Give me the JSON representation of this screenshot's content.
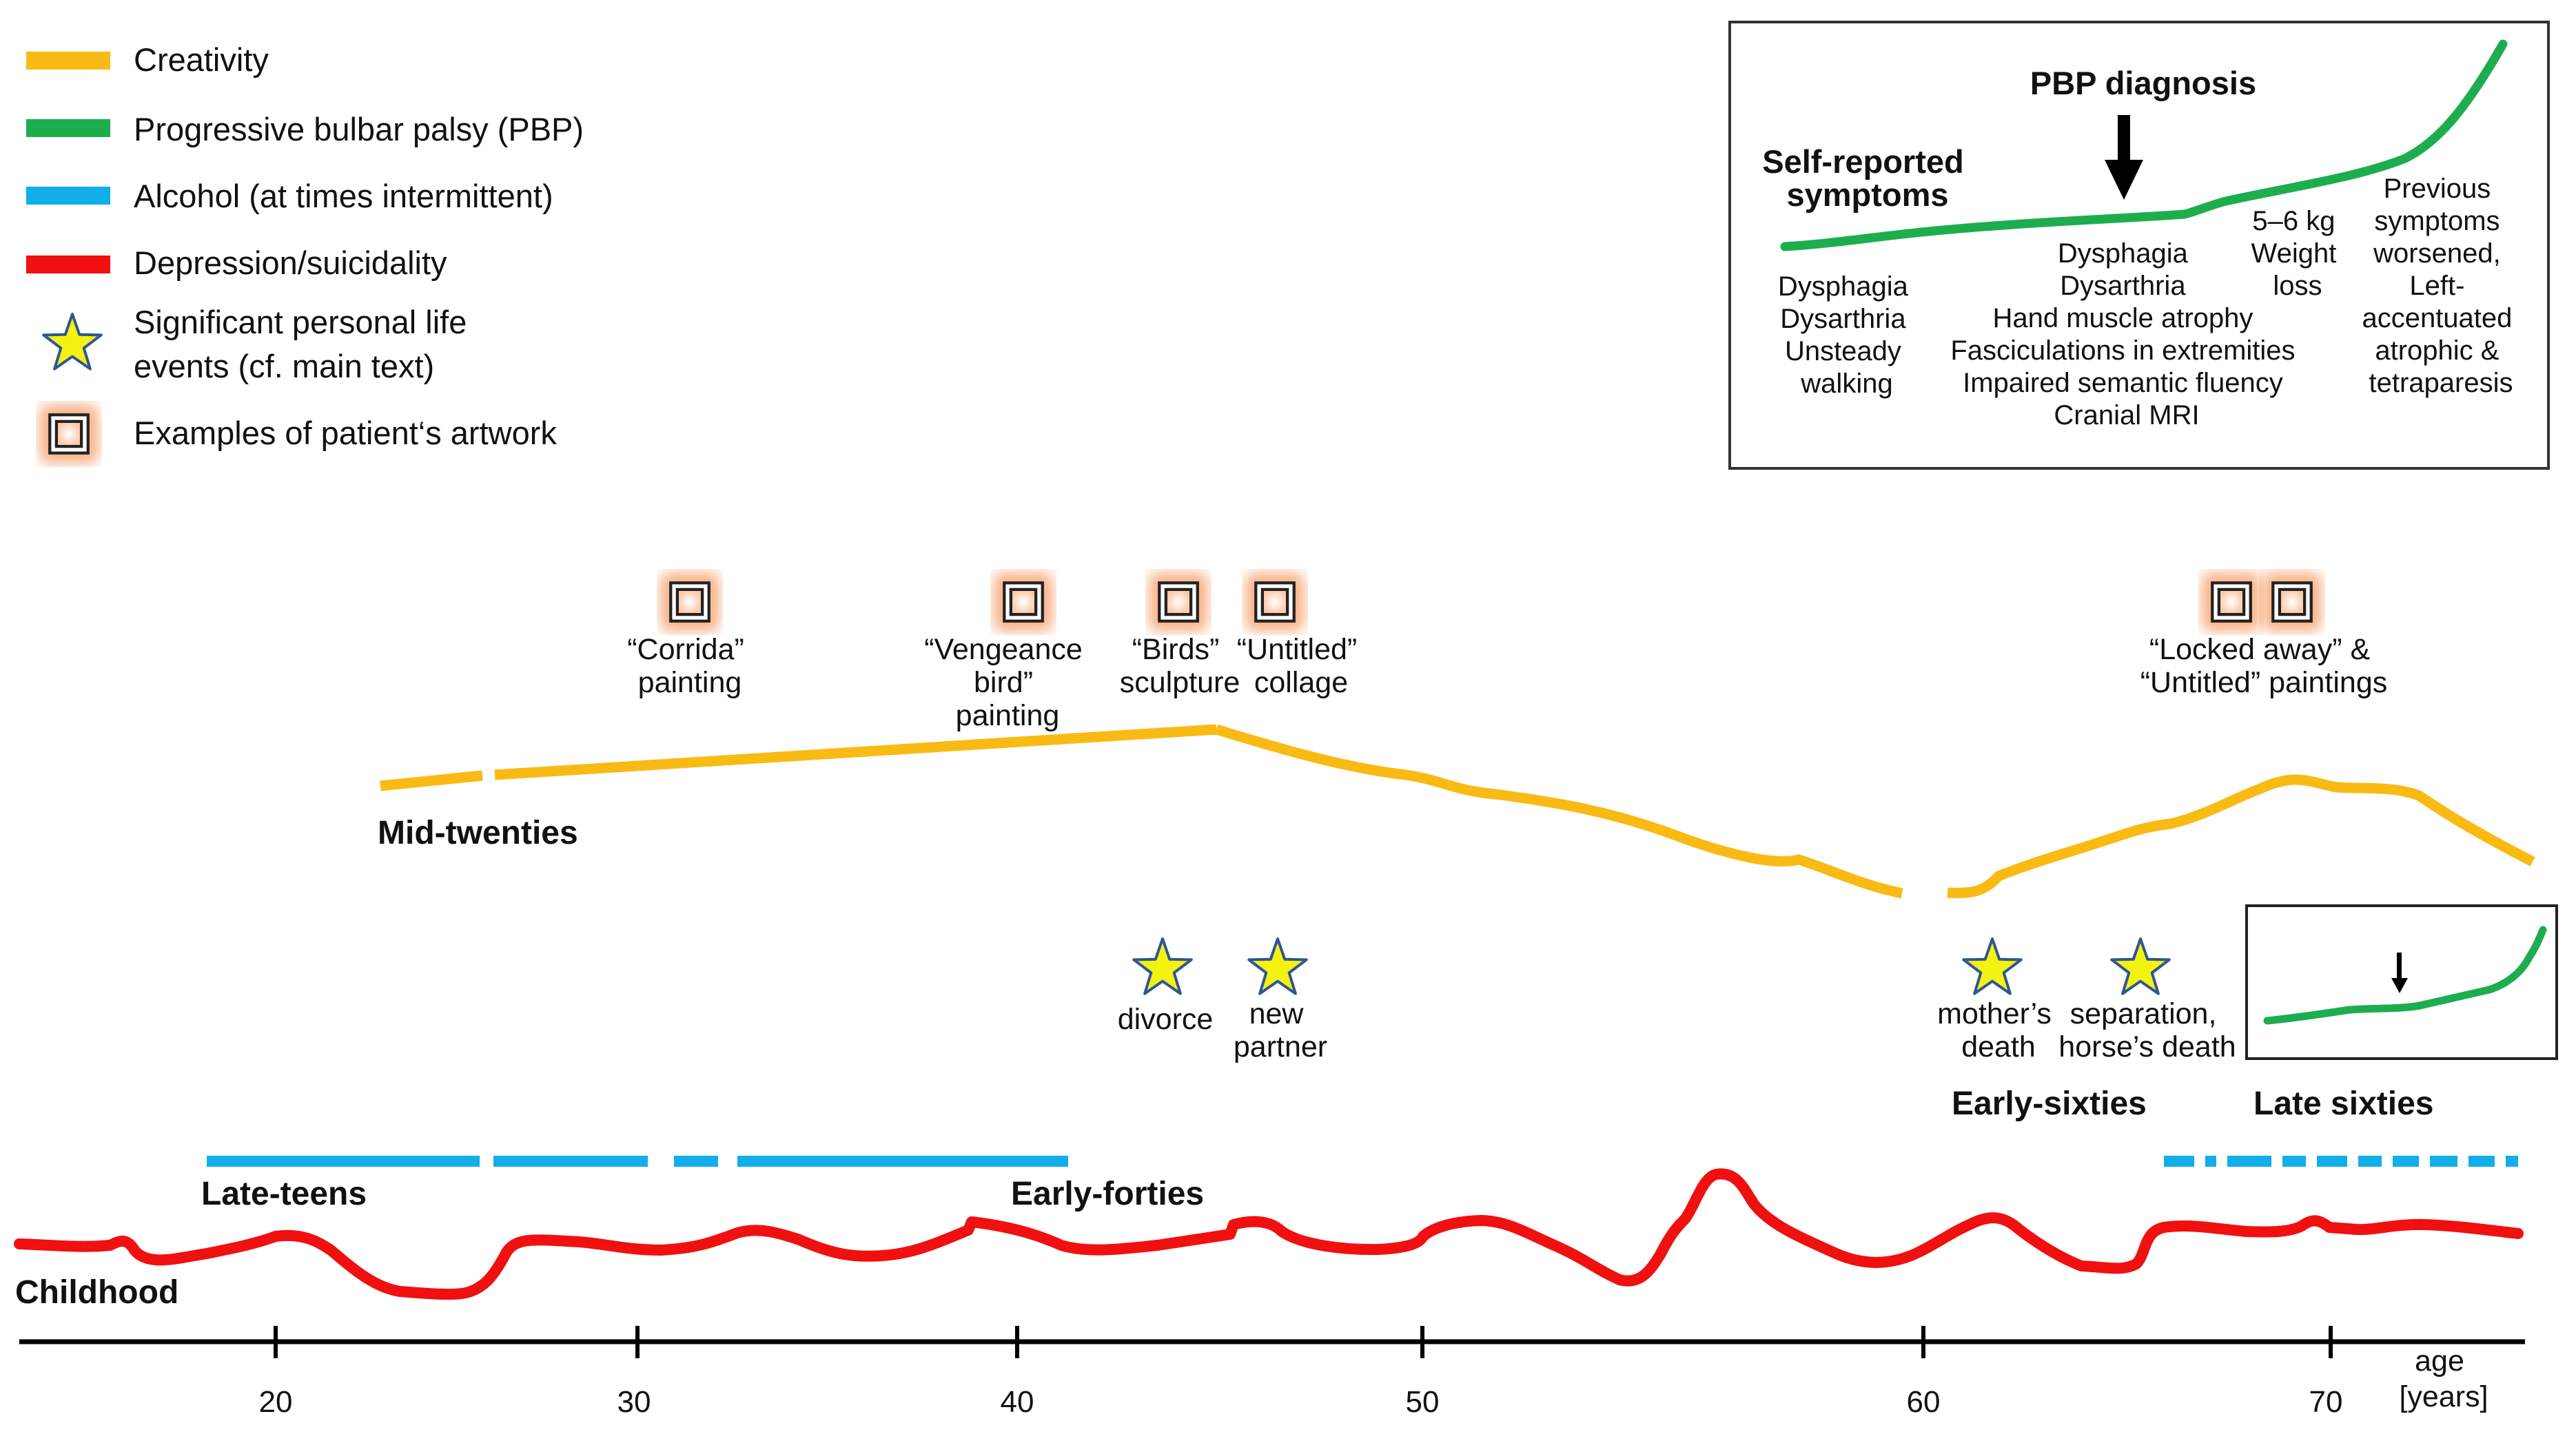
{
  "legend": {
    "creativity": "Creativity",
    "pbp": "Progressive bulbar palsy (PBP)",
    "alcohol": "Alcohol (at times intermittent)",
    "depression": "Depression/suicidality",
    "events_line1": "Significant personal life",
    "events_line2": "events (cf. main text)",
    "artwork": "Examples of patient‘s artwork"
  },
  "colors": {
    "creativity": "#F9BA14",
    "pbp": "#1DAD4F",
    "alcohol": "#12AEEA",
    "depression": "#F01010",
    "star": "#F4F211",
    "artwork_glow": "#F7A26F"
  },
  "axis": {
    "ticks": [
      "20",
      "30",
      "40",
      "50",
      "60",
      "70"
    ],
    "unit_line1": "age",
    "unit_line2": "[years]"
  },
  "artworks": [
    {
      "line1": "“Corrida”",
      "line2": "painting"
    },
    {
      "line1": "“Vengeance",
      "line2": "bird”",
      "line3": "painting"
    },
    {
      "line1": "“Birds”",
      "line2": "sculpture"
    },
    {
      "line1": "“Untitled”",
      "line2": "collage"
    },
    {
      "line1": "“Locked away” &",
      "line2": "“Untitled” paintings"
    }
  ],
  "events": [
    {
      "line1": "divorce"
    },
    {
      "line1": "new",
      "line2": "partner"
    },
    {
      "line1": "mother’s",
      "line2": "death"
    },
    {
      "line1": "separation,",
      "line2": "horse’s death"
    }
  ],
  "periods": {
    "mid_twenties": "Mid-twenties",
    "late_teens": "Late-teens",
    "early_forties": "Early-forties",
    "early_sixties": "Early-sixties",
    "late_sixties": "Late sixties",
    "childhood": "Childhood"
  },
  "inset": {
    "diagnosis": "PBP diagnosis",
    "self_reported": [
      "Self-reported",
      "symptoms"
    ],
    "early_symptoms": [
      "Dysphagia",
      "Dysarthria",
      "Unsteady",
      "walking"
    ],
    "diagnosis_findings": [
      "Dysphagia",
      "Dysarthria",
      "Hand muscle atrophy",
      "Fasciculations in extremities",
      "Impaired semantic fluency",
      "Cranial MRI"
    ],
    "weight_loss": [
      "5–6 kg",
      "Weight",
      "loss"
    ],
    "late_symptoms": [
      "Previous",
      "symptoms",
      "worsened,",
      "Left-",
      "accentuated",
      "atrophic &",
      "tetraparesis"
    ]
  }
}
